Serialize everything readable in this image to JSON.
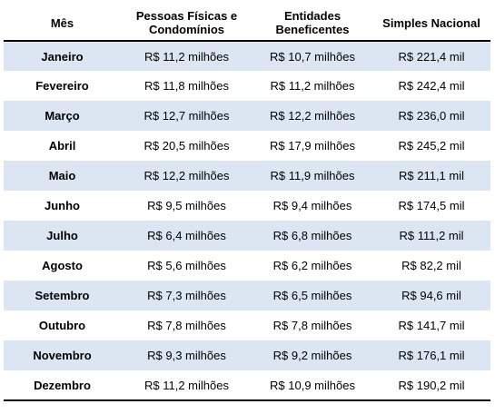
{
  "table": {
    "headers": [
      "Mês",
      "Pessoas Físicas e Condomínios",
      "Entidades Beneficentes",
      "Simples Nacional"
    ],
    "rows": [
      [
        "Janeiro",
        "R$ 11,2 milhões",
        "R$ 10,7 milhões",
        "R$ 221,4 mil"
      ],
      [
        "Fevereiro",
        "R$ 11,8 milhões",
        "R$ 11,2 milhões",
        "R$ 242,4 mil"
      ],
      [
        "Março",
        "R$ 12,7 milhões",
        "R$ 12,2 milhões",
        "R$ 236,0 mil"
      ],
      [
        "Abril",
        "R$ 20,5 milhões",
        "R$ 17,9 milhões",
        "R$ 245,2 mil"
      ],
      [
        "Maio",
        "R$ 12,2 milhões",
        "R$ 11,9 milhões",
        "R$ 211,1 mil"
      ],
      [
        "Junho",
        "R$ 9,5 milhões",
        "R$ 9,4 milhões",
        "R$ 174,5 mil"
      ],
      [
        "Julho",
        "R$ 6,4 milhões",
        "R$ 6,8 milhões",
        "R$ 111,2 mil"
      ],
      [
        "Agosto",
        "R$ 5,6 milhões",
        "R$ 6,2 milhões",
        "R$ 82,2 mil"
      ],
      [
        "Setembro",
        "R$ 7,3 milhões",
        "R$ 6,5 milhões",
        "R$ 94,6 mil"
      ],
      [
        "Outubro",
        "R$ 7,8 milhões",
        "R$ 7,8 milhões",
        "R$ 141,7 mil"
      ],
      [
        "Novembro",
        "R$ 9,3 milhões",
        "R$ 9,2 milhões",
        "R$ 176,1 mil"
      ],
      [
        "Dezembro",
        "R$ 11,2 milhões",
        "R$ 10,9 milhões",
        "R$ 190,2 mil"
      ]
    ]
  },
  "colors": {
    "band": "#dce6f2",
    "rule": "#000000"
  }
}
